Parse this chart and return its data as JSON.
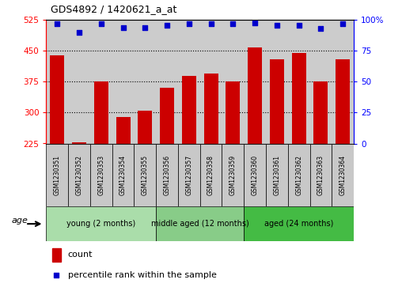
{
  "title": "GDS4892 / 1420621_a_at",
  "samples": [
    "GSM1230351",
    "GSM1230352",
    "GSM1230353",
    "GSM1230354",
    "GSM1230355",
    "GSM1230356",
    "GSM1230357",
    "GSM1230358",
    "GSM1230359",
    "GSM1230360",
    "GSM1230361",
    "GSM1230362",
    "GSM1230363",
    "GSM1230364"
  ],
  "counts": [
    440,
    228,
    375,
    290,
    305,
    360,
    390,
    395,
    375,
    458,
    430,
    445,
    375,
    430
  ],
  "percentiles": [
    97,
    90,
    97,
    94,
    94,
    96,
    97,
    97,
    97,
    98,
    96,
    96,
    93,
    97
  ],
  "groups": [
    {
      "label": "young (2 months)",
      "start": 0,
      "end": 4
    },
    {
      "label": "middle aged (12 months)",
      "start": 5,
      "end": 8
    },
    {
      "label": "aged (24 months)",
      "start": 9,
      "end": 13
    }
  ],
  "group_colors": [
    "#AADDAA",
    "#88CC88",
    "#44BB44"
  ],
  "ylim_left": [
    225,
    525
  ],
  "ylim_right": [
    0,
    100
  ],
  "yticks_left": [
    225,
    300,
    375,
    450,
    525
  ],
  "yticks_right": [
    0,
    25,
    50,
    75,
    100
  ],
  "bar_color": "#CC0000",
  "dot_color": "#0000CC",
  "bar_width": 0.65,
  "grid_lines": [
    300,
    375,
    450
  ],
  "bg_color": "#CCCCCC",
  "sample_bg_color": "#C8C8C8",
  "xlabel": "age",
  "legend_count_label": "count",
  "legend_pct_label": "percentile rank within the sample"
}
